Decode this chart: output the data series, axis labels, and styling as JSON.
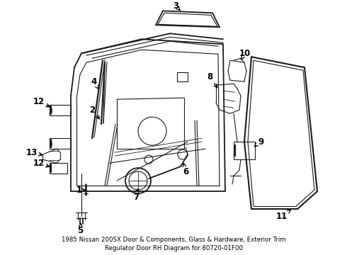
{
  "title_line1": "1985 Nissan 200SX Door & Components, Glass & Hardware, Exterior Trim",
  "title_line2": "Regulator Door RH Diagram for 80720-01F00",
  "bg_color": "#ffffff",
  "line_color": "#1a1a1a",
  "label_color": "#000000",
  "label_fontsize": 8.5,
  "title_fontsize": 6.2
}
